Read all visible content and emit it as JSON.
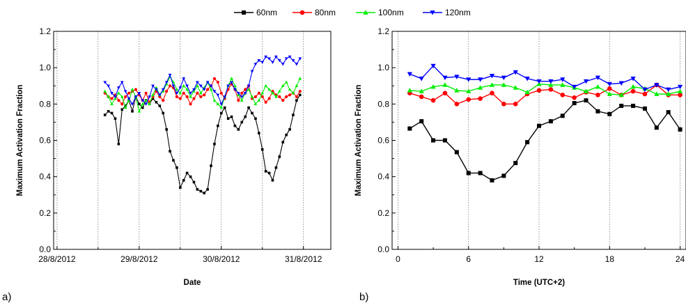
{
  "legend": [
    {
      "name": "60nm",
      "color": "#000000",
      "marker": "square"
    },
    {
      "name": "80nm",
      "color": "#ff0000",
      "marker": "circle"
    },
    {
      "name": "100nm",
      "color": "#00ee00",
      "marker": "triangle-up"
    },
    {
      "name": "120nm",
      "color": "#0000ff",
      "marker": "triangle-down"
    }
  ],
  "chart_data": [
    {
      "panel_label": "a)",
      "type": "line",
      "xlabel": "Date",
      "ylabel": "Maximum Activation Fraction",
      "ylim": [
        0.0,
        1.2
      ],
      "xlim": [
        "2012-08-27T23:00",
        "2012-08-31T08:00"
      ],
      "yticks": [
        "0.0",
        "0.2",
        "0.4",
        "0.6",
        "0.8",
        "1.0",
        "1.2"
      ],
      "xticks": [
        {
          "at": "2012-08-28T00:00",
          "label": "28/8/2012"
        },
        {
          "at": "2012-08-29T00:00",
          "label": "29/8/2012"
        },
        {
          "at": "2012-08-30T00:00",
          "label": "30/8/2012"
        },
        {
          "at": "2012-08-31T00:00",
          "label": "31/8/2012"
        }
      ],
      "grid": "vertical dotted lines every 12 h",
      "series": [
        {
          "name": "60nm",
          "color": "#000000",
          "marker": "square",
          "time_step": "1 h",
          "start": "2012-08-28T14:00",
          "values": [
            0.74,
            0.76,
            0.75,
            0.72,
            0.58,
            0.77,
            0.79,
            0.82,
            0.76,
            0.84,
            0.8,
            0.78,
            0.82,
            0.8,
            0.83,
            0.81,
            0.79,
            0.75,
            0.66,
            0.54,
            0.49,
            0.45,
            0.34,
            0.38,
            0.42,
            0.4,
            0.37,
            0.33,
            0.32,
            0.31,
            0.33,
            0.46,
            0.58,
            0.68,
            0.75,
            0.78,
            0.72,
            0.73,
            0.68,
            0.66,
            0.7,
            0.73,
            0.78,
            0.75,
            0.72,
            0.64,
            0.55,
            0.43,
            0.42,
            0.38,
            0.45,
            0.51,
            0.59,
            0.63,
            0.66,
            0.74,
            0.82,
            0.85
          ]
        },
        {
          "name": "80nm",
          "color": "#ff0000",
          "marker": "circle",
          "time_step": "1 h",
          "start": "2012-08-28T14:00",
          "values": [
            0.86,
            0.84,
            0.83,
            0.85,
            0.82,
            0.8,
            0.84,
            0.86,
            0.87,
            0.88,
            0.85,
            0.82,
            0.86,
            0.81,
            0.84,
            0.87,
            0.84,
            0.82,
            0.87,
            0.9,
            0.89,
            0.84,
            0.83,
            0.86,
            0.84,
            0.8,
            0.83,
            0.86,
            0.84,
            0.85,
            0.88,
            0.9,
            0.94,
            0.92,
            0.86,
            0.83,
            0.88,
            0.91,
            0.88,
            0.82,
            0.86,
            0.88,
            0.9,
            0.83,
            0.84,
            0.86,
            0.84,
            0.81,
            0.83,
            0.87,
            0.85,
            0.84,
            0.82,
            0.84,
            0.85,
            0.86,
            0.84,
            0.87
          ]
        },
        {
          "name": "100nm",
          "color": "#00ee00",
          "marker": "triangle-up",
          "time_step": "1 h",
          "start": "2012-08-28T14:00",
          "values": [
            0.87,
            0.84,
            0.8,
            0.83,
            0.86,
            0.84,
            0.78,
            0.82,
            0.88,
            0.84,
            0.76,
            0.8,
            0.82,
            0.8,
            0.85,
            0.89,
            0.85,
            0.87,
            0.91,
            0.95,
            0.92,
            0.88,
            0.86,
            0.9,
            0.88,
            0.84,
            0.87,
            0.9,
            0.86,
            0.89,
            0.92,
            0.88,
            0.82,
            0.8,
            0.78,
            0.84,
            0.9,
            0.94,
            0.9,
            0.85,
            0.82,
            0.86,
            0.88,
            0.84,
            0.8,
            0.82,
            0.86,
            0.9,
            0.88,
            0.86,
            0.84,
            0.87,
            0.9,
            0.92,
            0.88,
            0.86,
            0.9,
            0.94
          ]
        },
        {
          "name": "120nm",
          "color": "#0000ff",
          "marker": "triangle-down",
          "time_step": "1 h",
          "start": "2012-08-28T14:00",
          "values": [
            0.92,
            0.9,
            0.86,
            0.84,
            0.89,
            0.92,
            0.87,
            0.83,
            0.8,
            0.84,
            0.86,
            0.82,
            0.8,
            0.84,
            0.9,
            0.88,
            0.85,
            0.88,
            0.92,
            0.96,
            0.9,
            0.86,
            0.89,
            0.94,
            0.9,
            0.86,
            0.88,
            0.92,
            0.9,
            0.88,
            0.92,
            0.9,
            0.87,
            0.85,
            0.8,
            0.84,
            0.9,
            0.92,
            0.88,
            0.86,
            0.84,
            0.86,
            0.9,
            0.98,
            1.02,
            1.04,
            1.03,
            1.06,
            1.05,
            1.03,
            1.06,
            1.04,
            1.02,
            1.05,
            1.06,
            1.04,
            1.02,
            1.05
          ]
        }
      ]
    },
    {
      "panel_label": "b)",
      "type": "line",
      "xlabel": "Time (UTC+2)",
      "ylabel": "Maximum Activation Fraction",
      "ylim": [
        0.0,
        1.2
      ],
      "xlim": [
        -0.5,
        24.5
      ],
      "yticks": [
        "0.0",
        "0.2",
        "0.4",
        "0.6",
        "0.8",
        "1.0",
        "1.2"
      ],
      "xticks": [
        0,
        6,
        12,
        18,
        24
      ],
      "grid": "vertical dotted lines at 0, 6, 12, 18, 24",
      "x": [
        1,
        2,
        3,
        4,
        5,
        6,
        7,
        8,
        9,
        10,
        11,
        12,
        13,
        14,
        15,
        16,
        17,
        18,
        19,
        20,
        21,
        22,
        23,
        24
      ],
      "series": [
        {
          "name": "60nm",
          "color": "#000000",
          "marker": "square",
          "values": [
            0.665,
            0.705,
            0.6,
            0.6,
            0.535,
            0.42,
            0.42,
            0.38,
            0.405,
            0.475,
            0.59,
            0.68,
            0.705,
            0.735,
            0.805,
            0.82,
            0.76,
            0.745,
            0.79,
            0.79,
            0.775,
            0.67,
            0.755,
            0.66
          ]
        },
        {
          "name": "80nm",
          "color": "#ff0000",
          "marker": "circle",
          "values": [
            0.86,
            0.84,
            0.82,
            0.86,
            0.8,
            0.825,
            0.83,
            0.86,
            0.8,
            0.8,
            0.855,
            0.875,
            0.88,
            0.85,
            0.835,
            0.865,
            0.85,
            0.885,
            0.85,
            0.87,
            0.855,
            0.905,
            0.85,
            0.85
          ]
        },
        {
          "name": "100nm",
          "color": "#00ee00",
          "marker": "triangle-up",
          "values": [
            0.875,
            0.87,
            0.895,
            0.905,
            0.875,
            0.87,
            0.89,
            0.905,
            0.905,
            0.89,
            0.865,
            0.91,
            0.905,
            0.905,
            0.89,
            0.87,
            0.895,
            0.855,
            0.85,
            0.895,
            0.885,
            0.855,
            0.855,
            0.87
          ]
        },
        {
          "name": "120nm",
          "color": "#0000ff",
          "marker": "triangle-down",
          "values": [
            0.965,
            0.94,
            1.01,
            0.945,
            0.95,
            0.935,
            0.935,
            0.955,
            0.945,
            0.975,
            0.94,
            0.925,
            0.925,
            0.935,
            0.895,
            0.925,
            0.945,
            0.91,
            0.915,
            0.94,
            0.88,
            0.905,
            0.88,
            0.895
          ]
        }
      ]
    }
  ]
}
